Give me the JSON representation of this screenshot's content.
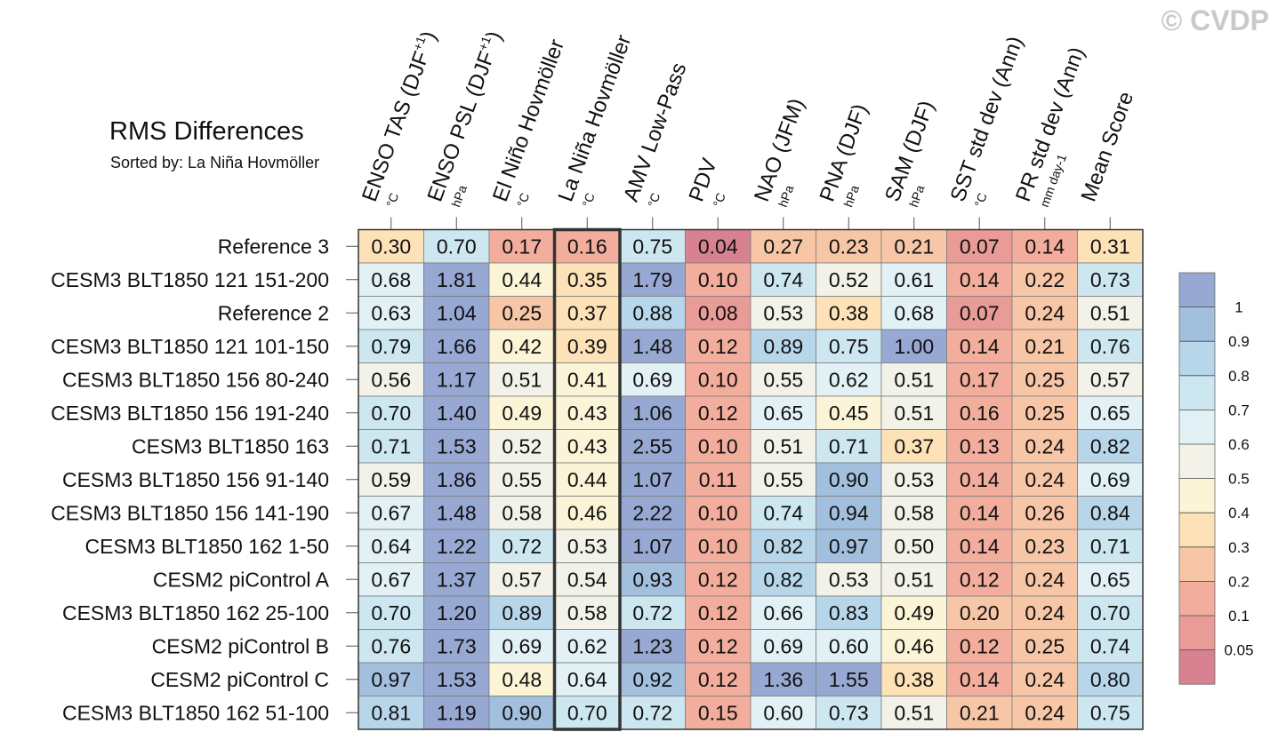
{
  "watermark": "© CVDP",
  "chart_data": {
    "type": "heatmap",
    "title": "RMS Differences",
    "subtitle": "Sorted by: La Niña Hovmöller",
    "highlighted_column": "La Niña Hovmöller",
    "columns": [
      {
        "label": "ENSO TAS (DJF+1)",
        "main": "ENSO TAS (DJF",
        "sup": "+1",
        "close": ")",
        "unit": "°C"
      },
      {
        "label": "ENSO PSL (DJF+1)",
        "main": "ENSO PSL (DJF",
        "sup": "+1",
        "close": ")",
        "unit": "hPa"
      },
      {
        "label": "El Niño Hovmöller",
        "main": "El Niño Hovmöller",
        "sup": "",
        "close": "",
        "unit": "°C"
      },
      {
        "label": "La Niña Hovmöller",
        "main": "La Niña Hovmöller",
        "sup": "",
        "close": "",
        "unit": "°C"
      },
      {
        "label": "AMV Low-Pass",
        "main": "AMV Low-Pass",
        "sup": "",
        "close": "",
        "unit": "°C"
      },
      {
        "label": "PDV",
        "main": "PDV",
        "sup": "",
        "close": "",
        "unit": "°C"
      },
      {
        "label": "NAO (JFM)",
        "main": "NAO (JFM)",
        "sup": "",
        "close": "",
        "unit": "hPa"
      },
      {
        "label": "PNA (DJF)",
        "main": "PNA (DJF)",
        "sup": "",
        "close": "",
        "unit": "hPa"
      },
      {
        "label": "SAM (DJF)",
        "main": "SAM (DJF)",
        "sup": "",
        "close": "",
        "unit": "hPa"
      },
      {
        "label": "SST std dev (Ann)",
        "main": "SST std dev (Ann)",
        "sup": "",
        "close": "",
        "unit": "°C"
      },
      {
        "label": "PR std dev (Ann)",
        "main": "PR std dev (Ann)",
        "sup": "",
        "close": "",
        "unit": "mm day-1"
      },
      {
        "label": "Mean Score",
        "main": "Mean Score",
        "sup": "",
        "close": "",
        "unit": ""
      }
    ],
    "rows": [
      {
        "name": "Reference 3",
        "values": [
          "0.30",
          "0.70",
          "0.17",
          "0.16",
          "0.75",
          "0.04",
          "0.27",
          "0.23",
          "0.21",
          "0.07",
          "0.14",
          "0.31"
        ]
      },
      {
        "name": "CESM3 BLT1850 121 151-200",
        "values": [
          "0.68",
          "1.81",
          "0.44",
          "0.35",
          "1.79",
          "0.10",
          "0.74",
          "0.52",
          "0.61",
          "0.14",
          "0.22",
          "0.73"
        ]
      },
      {
        "name": "Reference 2",
        "values": [
          "0.63",
          "1.04",
          "0.25",
          "0.37",
          "0.88",
          "0.08",
          "0.53",
          "0.38",
          "0.68",
          "0.07",
          "0.24",
          "0.51"
        ]
      },
      {
        "name": "CESM3 BLT1850 121 101-150",
        "values": [
          "0.79",
          "1.66",
          "0.42",
          "0.39",
          "1.48",
          "0.12",
          "0.89",
          "0.75",
          "1.00",
          "0.14",
          "0.21",
          "0.76"
        ]
      },
      {
        "name": "CESM3 BLT1850 156 80-240",
        "values": [
          "0.56",
          "1.17",
          "0.51",
          "0.41",
          "0.69",
          "0.10",
          "0.55",
          "0.62",
          "0.51",
          "0.17",
          "0.25",
          "0.57"
        ]
      },
      {
        "name": "CESM3 BLT1850 156 191-240",
        "values": [
          "0.70",
          "1.40",
          "0.49",
          "0.43",
          "1.06",
          "0.12",
          "0.65",
          "0.45",
          "0.51",
          "0.16",
          "0.25",
          "0.65"
        ]
      },
      {
        "name": "CESM3 BLT1850 163",
        "values": [
          "0.71",
          "1.53",
          "0.52",
          "0.43",
          "2.55",
          "0.10",
          "0.51",
          "0.71",
          "0.37",
          "0.13",
          "0.24",
          "0.82"
        ]
      },
      {
        "name": "CESM3 BLT1850 156 91-140",
        "values": [
          "0.59",
          "1.86",
          "0.55",
          "0.44",
          "1.07",
          "0.11",
          "0.55",
          "0.90",
          "0.53",
          "0.14",
          "0.24",
          "0.69"
        ]
      },
      {
        "name": "CESM3 BLT1850 156 141-190",
        "values": [
          "0.67",
          "1.48",
          "0.58",
          "0.46",
          "2.22",
          "0.10",
          "0.74",
          "0.94",
          "0.58",
          "0.14",
          "0.26",
          "0.84"
        ]
      },
      {
        "name": "CESM3 BLT1850 162 1-50",
        "values": [
          "0.64",
          "1.22",
          "0.72",
          "0.53",
          "1.07",
          "0.10",
          "0.82",
          "0.97",
          "0.50",
          "0.14",
          "0.23",
          "0.71"
        ]
      },
      {
        "name": "CESM2 piControl A",
        "values": [
          "0.67",
          "1.37",
          "0.57",
          "0.54",
          "0.93",
          "0.12",
          "0.82",
          "0.53",
          "0.51",
          "0.12",
          "0.24",
          "0.65"
        ]
      },
      {
        "name": "CESM3 BLT1850 162 25-100",
        "values": [
          "0.70",
          "1.20",
          "0.89",
          "0.58",
          "0.72",
          "0.12",
          "0.66",
          "0.83",
          "0.49",
          "0.20",
          "0.24",
          "0.70"
        ]
      },
      {
        "name": "CESM2 piControl B",
        "values": [
          "0.76",
          "1.73",
          "0.69",
          "0.62",
          "1.23",
          "0.12",
          "0.69",
          "0.60",
          "0.46",
          "0.12",
          "0.25",
          "0.74"
        ]
      },
      {
        "name": "CESM2 piControl C",
        "values": [
          "0.97",
          "1.53",
          "0.48",
          "0.64",
          "0.92",
          "0.12",
          "1.36",
          "1.55",
          "0.38",
          "0.14",
          "0.24",
          "0.80"
        ]
      },
      {
        "name": "CESM3 BLT1850 162 51-100",
        "values": [
          "0.81",
          "1.19",
          "0.90",
          "0.70",
          "0.72",
          "0.15",
          "0.60",
          "0.73",
          "0.51",
          "0.21",
          "0.24",
          "0.75"
        ]
      }
    ],
    "colorbar": {
      "levels": [
        0.05,
        0.1,
        0.2,
        0.3,
        0.4,
        0.5,
        0.6,
        0.7,
        0.8,
        0.9,
        1
      ],
      "labels": [
        "0.05",
        "0.1",
        "0.2",
        "0.3",
        "0.4",
        "0.5",
        "0.6",
        "0.7",
        "0.8",
        "0.9",
        "1"
      ],
      "colors": [
        "#d88191",
        "#e99b97",
        "#f2ad9c",
        "#f7c6a6",
        "#fde2b7",
        "#fcf4d6",
        "#f2f2e8",
        "#e2f1f6",
        "#cde7f1",
        "#b7d6ea",
        "#a2bfdd",
        "#97a8d3"
      ]
    }
  }
}
